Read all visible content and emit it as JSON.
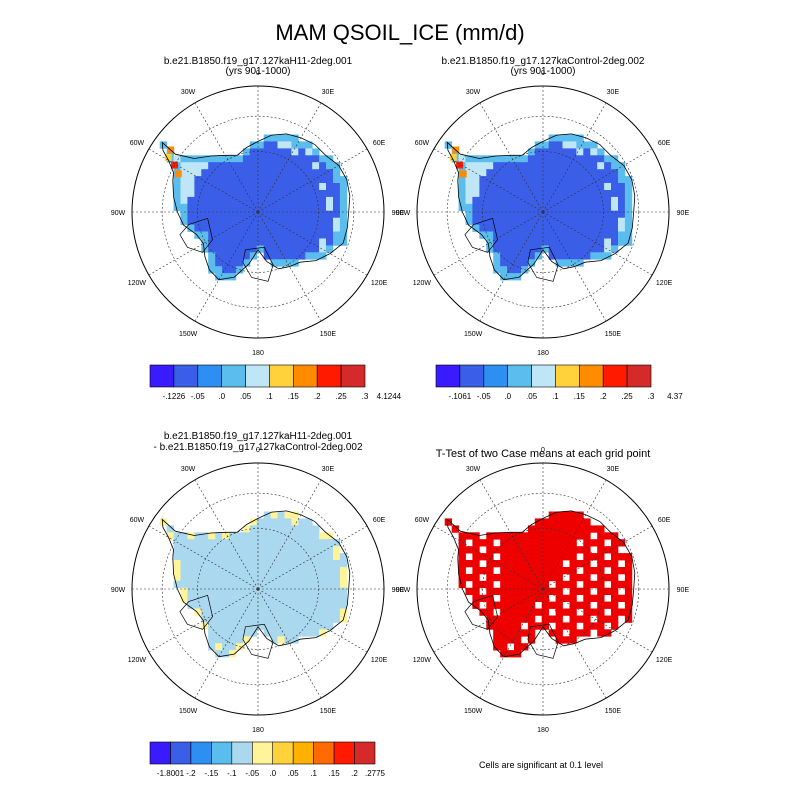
{
  "chart_data": {
    "type": "map",
    "title": "MAM QSOIL_ICE (mm/d)",
    "projection": "south-polar stereographic",
    "lon_labels": [
      "0",
      "30E",
      "60E",
      "90E",
      "120E",
      "150E",
      "180",
      "150W",
      "120W",
      "90W",
      "60W",
      "30W"
    ],
    "panels": [
      {
        "title_lines": [
          "b.e21.B1850.f19_g17.127kaH11-2deg.001",
          "(yrs 901-1000)"
        ],
        "colorbar": {
          "labels": [
            "-.1226",
            "-.05",
            ".0",
            ".05",
            ".1",
            ".15",
            ".2",
            ".25",
            ".3",
            "4.1244"
          ],
          "colors": [
            "#3a1aff",
            "#3a5ee8",
            "#2e8ff2",
            "#5bbdee",
            "#bfe6f7",
            "#ffd23c",
            "#ff8c00",
            "#ff1a00",
            "#d42a2a"
          ],
          "min": -0.1226,
          "max": 4.1244
        },
        "dominant_range": "-.05 to .0",
        "coastal_range": ".0 to .1"
      },
      {
        "title_lines": [
          "b.e21.B1850.f19_g17.127kaControl-2deg.002",
          "(yrs 901-1000)"
        ],
        "colorbar": {
          "labels": [
            "-.1061",
            "-.05",
            ".0",
            ".05",
            ".1",
            ".15",
            ".2",
            ".25",
            ".3",
            "4.37"
          ],
          "colors": [
            "#3a1aff",
            "#3a5ee8",
            "#2e8ff2",
            "#5bbdee",
            "#bfe6f7",
            "#ffd23c",
            "#ff8c00",
            "#ff1a00",
            "#d42a2a"
          ],
          "min": -0.1061,
          "max": 4.37
        },
        "dominant_range": "-.05 to .0",
        "coastal_range": ".0 to .1"
      },
      {
        "title_lines": [
          "b.e21.B1850.f19_g17.127kaH11-2deg.001",
          "- b.e21.B1850.f19_g17.127kaControl-2deg.002"
        ],
        "colorbar": {
          "labels": [
            "-1.8001",
            "-.2",
            "-.15",
            "-.1",
            "-.05",
            ".0",
            ".05",
            ".1",
            ".15",
            ".2",
            ".2775"
          ],
          "colors": [
            "#3a1aff",
            "#3a5ee8",
            "#2e8ff2",
            "#5bbdee",
            "#a9d8ef",
            "#fff49a",
            "#ffd23c",
            "#ffb000",
            "#ff6a00",
            "#ff1a00",
            "#d42a2a"
          ],
          "min": -1.8001,
          "max": 0.2775
        },
        "dominant_range": "-.05 to .0",
        "secondary_range": ".0 to .05"
      },
      {
        "title_lines": [
          "T-Test of two Case means at each grid point"
        ],
        "note": "Cells are significant at 0.1 level",
        "significant_color": "#ee0000"
      }
    ]
  }
}
